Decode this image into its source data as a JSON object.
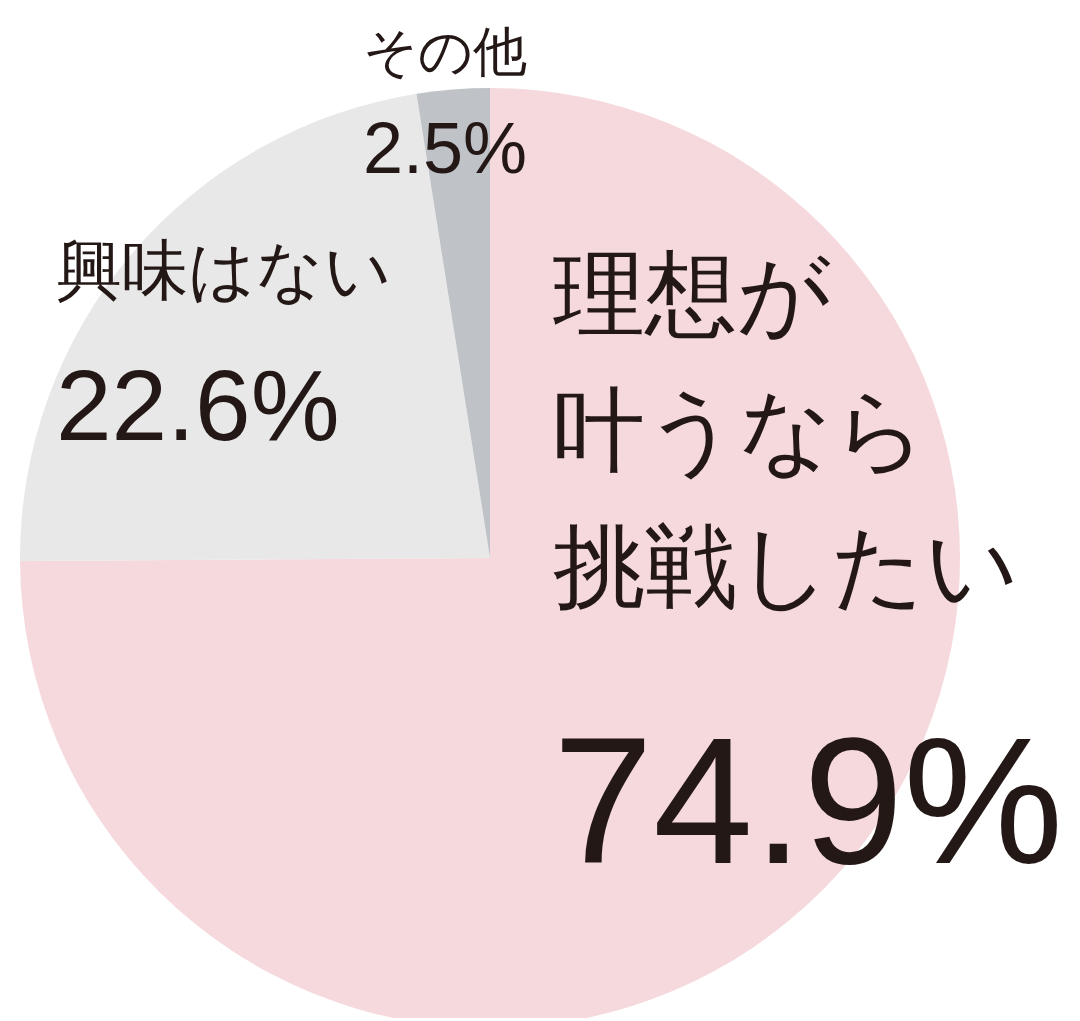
{
  "chart_data": {
    "type": "pie",
    "categories": [
      "理想が叶うなら挑戦したい",
      "興味はない",
      "その他"
    ],
    "values": [
      74.9,
      22.6,
      2.5
    ],
    "value_labels": [
      "74.9%",
      "22.6%",
      "2.5%"
    ],
    "colors": [
      "#f5d9dc",
      "#e8e8e8",
      "#bfc3c7"
    ]
  }
}
